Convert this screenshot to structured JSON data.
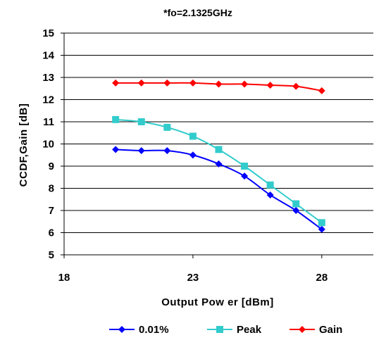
{
  "chart_data": {
    "type": "line",
    "title": "*fo=2.1325GHz",
    "xlabel": "Output Pow er [dBm]",
    "ylabel": "CCDF,Gain [dB]",
    "xlim": [
      18,
      30
    ],
    "ylim": [
      5,
      15
    ],
    "xticks": [
      "18",
      "23",
      "28"
    ],
    "yticks": [
      "5",
      "6",
      "7",
      "8",
      "9",
      "10",
      "11",
      "12",
      "13",
      "14",
      "15"
    ],
    "grid": "horizontal",
    "legend_position": "bottom",
    "series": [
      {
        "name": "0.01%",
        "color": "#0000ff",
        "marker": "diamond",
        "x": [
          20,
          21,
          22,
          23,
          24,
          25,
          26,
          27,
          28
        ],
        "y": [
          9.75,
          9.7,
          9.7,
          9.5,
          9.1,
          8.55,
          7.7,
          7.0,
          6.15
        ]
      },
      {
        "name": "Peak",
        "color": "#33cccc",
        "marker": "square",
        "x": [
          20,
          21,
          22,
          23,
          24,
          25,
          26,
          27,
          28
        ],
        "y": [
          11.1,
          11.0,
          10.75,
          10.35,
          9.75,
          9.0,
          8.15,
          7.3,
          6.45
        ]
      },
      {
        "name": "Gain",
        "color": "#ff0000",
        "marker": "diamond",
        "x": [
          20,
          21,
          22,
          23,
          24,
          25,
          26,
          27,
          28
        ],
        "y": [
          12.75,
          12.75,
          12.75,
          12.75,
          12.7,
          12.7,
          12.65,
          12.6,
          12.4
        ]
      }
    ]
  }
}
